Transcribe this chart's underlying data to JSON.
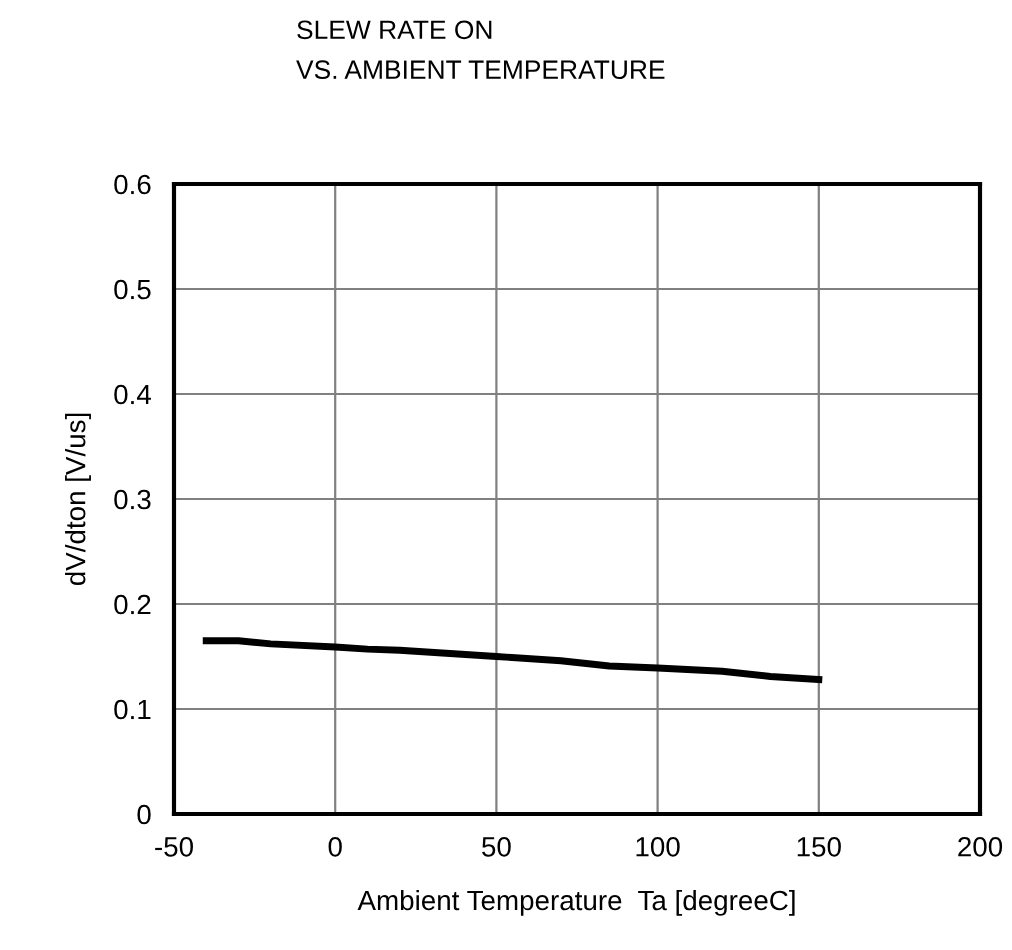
{
  "chart_data": {
    "type": "line",
    "title": "SLEW RATE ON\nVS. AMBIENT TEMPERATURE",
    "xlabel": "Ambient Temperature  Ta [degreeC]",
    "ylabel": "dV/dton [V/us]",
    "x": [
      -40,
      -30,
      -20,
      0,
      10,
      20,
      50,
      70,
      85,
      100,
      120,
      135,
      150
    ],
    "series": [
      {
        "color": "#000000",
        "values": [
          0.165,
          0.165,
          0.162,
          0.159,
          0.157,
          0.156,
          0.15,
          0.146,
          0.141,
          0.139,
          0.136,
          0.131,
          0.128
        ]
      }
    ],
    "xlim": [
      -50,
      200
    ],
    "xticks": [
      -50,
      0,
      50,
      100,
      150,
      200
    ],
    "ylim": [
      0,
      0.6
    ],
    "yticks": [
      0,
      0.1,
      0.2,
      0.3,
      0.4,
      0.5,
      0.6
    ],
    "grid": true,
    "legend": false
  }
}
